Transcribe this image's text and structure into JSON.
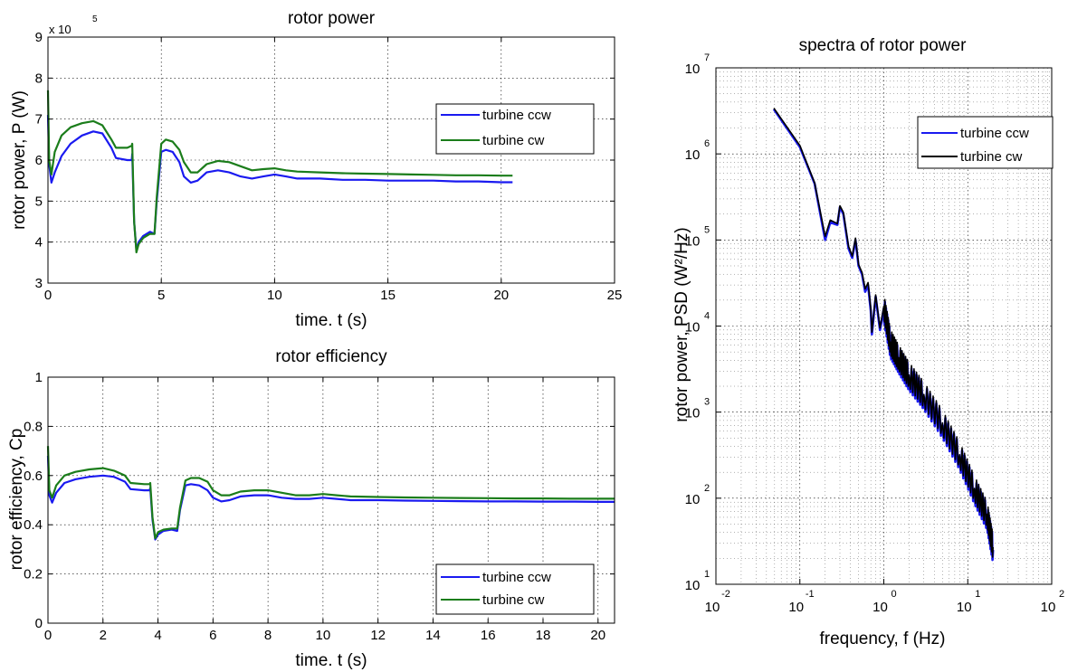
{
  "colors": {
    "ccw": "#1a1af0",
    "cw_green": "#1b7d1b",
    "cw_black": "#000000"
  },
  "chart_data": [
    {
      "id": "power",
      "type": "line",
      "title": "rotor power",
      "xlabel": "time. t (s)",
      "ylabel": "rotor power, P (W)",
      "y_multiplier": "x 10",
      "y_multiplier_exp": "5",
      "xlim": [
        0,
        25
      ],
      "ylim": [
        3,
        9
      ],
      "xticks": [
        0,
        5,
        10,
        15,
        20,
        25
      ],
      "yticks": [
        3,
        4,
        5,
        6,
        7,
        8,
        9
      ],
      "grid": true,
      "legend": "right",
      "series": [
        {
          "name": "turbine ccw",
          "color": "ccw",
          "x": [
            0,
            0.05,
            0.15,
            0.3,
            0.6,
            1.0,
            1.5,
            2.0,
            2.4,
            2.8,
            3.0,
            3.5,
            3.7,
            3.72,
            3.8,
            3.9,
            4.0,
            4.2,
            4.5,
            4.7,
            4.8,
            5.0,
            5.2,
            5.5,
            5.8,
            6.0,
            6.3,
            6.6,
            7.0,
            7.5,
            8.0,
            8.5,
            9.0,
            9.5,
            10.0,
            10.5,
            11.0,
            12.0,
            13.0,
            14.0,
            15.0,
            16.0,
            17.0,
            18.0,
            19.0,
            20.0,
            20.5
          ],
          "y": [
            7.1,
            5.9,
            5.45,
            5.7,
            6.1,
            6.4,
            6.6,
            6.7,
            6.65,
            6.3,
            6.05,
            6.0,
            6.0,
            6.15,
            4.5,
            3.8,
            4.0,
            4.15,
            4.25,
            4.2,
            5.0,
            6.2,
            6.25,
            6.2,
            5.95,
            5.6,
            5.45,
            5.5,
            5.7,
            5.75,
            5.7,
            5.6,
            5.55,
            5.6,
            5.65,
            5.6,
            5.55,
            5.55,
            5.52,
            5.52,
            5.5,
            5.5,
            5.5,
            5.48,
            5.48,
            5.46,
            5.46
          ]
        },
        {
          "name": "turbine cw",
          "color": "cw_green",
          "x": [
            0,
            0.05,
            0.15,
            0.3,
            0.6,
            1.0,
            1.5,
            2.0,
            2.4,
            2.8,
            3.0,
            3.5,
            3.7,
            3.72,
            3.8,
            3.9,
            4.0,
            4.2,
            4.5,
            4.7,
            4.8,
            5.0,
            5.2,
            5.5,
            5.8,
            6.0,
            6.3,
            6.6,
            7.0,
            7.5,
            8.0,
            8.5,
            9.0,
            9.5,
            10.0,
            10.5,
            11.0,
            12.0,
            13.0,
            14.0,
            15.0,
            16.0,
            17.0,
            18.0,
            19.0,
            20.0,
            20.5
          ],
          "y": [
            7.7,
            6.0,
            5.65,
            6.2,
            6.6,
            6.8,
            6.9,
            6.95,
            6.85,
            6.5,
            6.3,
            6.3,
            6.35,
            6.4,
            4.5,
            3.75,
            3.95,
            4.1,
            4.2,
            4.2,
            5.1,
            6.4,
            6.5,
            6.45,
            6.25,
            5.95,
            5.7,
            5.7,
            5.9,
            5.98,
            5.95,
            5.85,
            5.75,
            5.78,
            5.8,
            5.75,
            5.72,
            5.7,
            5.68,
            5.67,
            5.66,
            5.65,
            5.64,
            5.63,
            5.63,
            5.62,
            5.62
          ]
        }
      ]
    },
    {
      "id": "efficiency",
      "type": "line",
      "title": "rotor efficiency",
      "xlabel": "time. t (s)",
      "ylabel": "rotor efficiency, Cp",
      "xlim": [
        0,
        20.6
      ],
      "ylim": [
        0,
        1
      ],
      "xticks": [
        0,
        2,
        4,
        6,
        8,
        10,
        12,
        14,
        16,
        18,
        20
      ],
      "yticks": [
        0,
        0.2,
        0.4,
        0.6,
        0.8,
        1
      ],
      "grid": true,
      "legend": "bottom-right",
      "series": [
        {
          "name": "turbine ccw",
          "color": "ccw",
          "x": [
            0,
            0.05,
            0.15,
            0.3,
            0.6,
            1.0,
            1.5,
            2.0,
            2.4,
            2.8,
            3.0,
            3.5,
            3.7,
            3.72,
            3.8,
            3.9,
            4.0,
            4.2,
            4.5,
            4.7,
            4.8,
            5.0,
            5.2,
            5.5,
            5.8,
            6.0,
            6.3,
            6.6,
            7.0,
            7.5,
            8.0,
            8.5,
            9.0,
            9.5,
            10.0,
            10.5,
            11.0,
            12.0,
            13.0,
            14.0,
            15.0,
            16.0,
            17.0,
            18.0,
            19.0,
            20.0,
            20.6
          ],
          "y": [
            0.68,
            0.52,
            0.49,
            0.53,
            0.57,
            0.585,
            0.595,
            0.6,
            0.595,
            0.575,
            0.545,
            0.54,
            0.54,
            0.55,
            0.42,
            0.34,
            0.36,
            0.375,
            0.38,
            0.375,
            0.46,
            0.56,
            0.565,
            0.56,
            0.54,
            0.51,
            0.495,
            0.5,
            0.515,
            0.52,
            0.52,
            0.51,
            0.505,
            0.505,
            0.51,
            0.505,
            0.5,
            0.5,
            0.498,
            0.497,
            0.496,
            0.495,
            0.495,
            0.494,
            0.494,
            0.493,
            0.493
          ]
        },
        {
          "name": "turbine cw",
          "color": "cw_green",
          "x": [
            0,
            0.05,
            0.15,
            0.3,
            0.6,
            1.0,
            1.5,
            2.0,
            2.4,
            2.8,
            3.0,
            3.5,
            3.7,
            3.72,
            3.8,
            3.9,
            4.0,
            4.2,
            4.5,
            4.7,
            4.8,
            5.0,
            5.2,
            5.5,
            5.8,
            6.0,
            6.3,
            6.6,
            7.0,
            7.5,
            8.0,
            8.5,
            9.0,
            9.5,
            10.0,
            10.5,
            11.0,
            12.0,
            13.0,
            14.0,
            15.0,
            16.0,
            17.0,
            18.0,
            19.0,
            20.0,
            20.6
          ],
          "y": [
            0.72,
            0.54,
            0.51,
            0.56,
            0.6,
            0.615,
            0.625,
            0.63,
            0.62,
            0.6,
            0.57,
            0.565,
            0.565,
            0.57,
            0.43,
            0.345,
            0.37,
            0.38,
            0.385,
            0.385,
            0.47,
            0.58,
            0.59,
            0.59,
            0.575,
            0.54,
            0.52,
            0.52,
            0.535,
            0.54,
            0.54,
            0.53,
            0.52,
            0.52,
            0.525,
            0.52,
            0.515,
            0.513,
            0.511,
            0.51,
            0.509,
            0.508,
            0.507,
            0.507,
            0.506,
            0.506,
            0.506
          ]
        }
      ]
    },
    {
      "id": "spectra",
      "type": "line",
      "title": "spectra of rotor power",
      "xlabel": "frequency, f (Hz)",
      "ylabel": "rotor power, PSD (W²/Hz)",
      "xscale": "log",
      "yscale": "log",
      "xlim": [
        0.01,
        100
      ],
      "ylim": [
        10,
        10000000
      ],
      "xtick_exponents": [
        "-2",
        "-1",
        "0",
        "1",
        "2"
      ],
      "ytick_exponents": [
        "1",
        "2",
        "3",
        "4",
        "5",
        "6",
        "7"
      ],
      "tick_base": "10",
      "grid": true,
      "legend": "top-right",
      "series": [
        {
          "name": "turbine ccw",
          "color": "ccw",
          "x": [
            0.049,
            0.1,
            0.15,
            0.2,
            0.23,
            0.28,
            0.3,
            0.33,
            0.38,
            0.42,
            0.46,
            0.5,
            0.55,
            0.6,
            0.65,
            0.7,
            0.72,
            0.8,
            0.9,
            1.0,
            1.2,
            1.5,
            2.0,
            3.0,
            5.0,
            8.0,
            12.0,
            17.0,
            20.0
          ],
          "y": [
            3300000,
            1200000,
            450000,
            100000,
            160000,
            150000,
            240000,
            200000,
            80000,
            62000,
            100000,
            50000,
            40000,
            25000,
            30000,
            15000,
            8000,
            22000,
            9000,
            16000,
            6000,
            4000,
            2500,
            1500,
            700,
            300,
            120,
            60,
            25
          ]
        },
        {
          "name": "turbine cw",
          "color": "cw_black",
          "x": [
            0.049,
            0.1,
            0.15,
            0.2,
            0.23,
            0.28,
            0.3,
            0.33,
            0.38,
            0.42,
            0.46,
            0.5,
            0.55,
            0.6,
            0.65,
            0.7,
            0.72,
            0.8,
            0.9,
            1.0,
            1.2,
            1.5,
            2.0,
            3.0,
            5.0,
            8.0,
            12.0,
            17.0,
            20.0
          ],
          "y": [
            3400000,
            1250000,
            460000,
            110000,
            170000,
            155000,
            250000,
            210000,
            85000,
            65000,
            105000,
            52000,
            42000,
            27000,
            32000,
            16000,
            8500,
            23000,
            9500,
            17000,
            6500,
            4300,
            2700,
            1600,
            750,
            320,
            130,
            65,
            27
          ]
        }
      ]
    }
  ]
}
